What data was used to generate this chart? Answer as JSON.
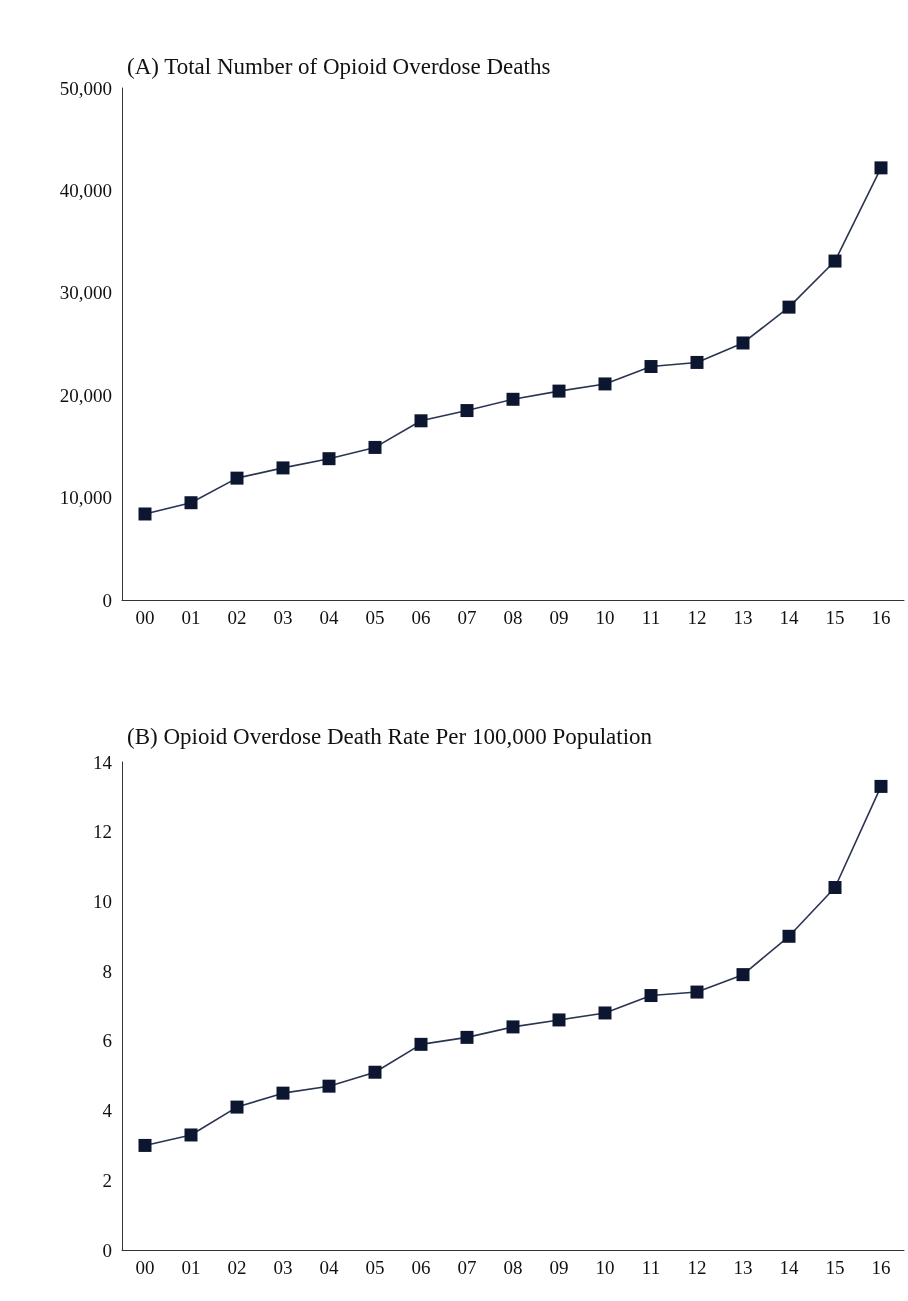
{
  "chart_data": [
    {
      "type": "line",
      "title": "(A) Total Number of Opioid Overdose Deaths",
      "categories": [
        "00",
        "01",
        "02",
        "03",
        "04",
        "05",
        "06",
        "07",
        "08",
        "09",
        "10",
        "11",
        "12",
        "13",
        "14",
        "15",
        "16"
      ],
      "values": [
        8400,
        9500,
        11900,
        12900,
        13800,
        14900,
        17500,
        18500,
        19600,
        20400,
        21100,
        22800,
        23200,
        25100,
        28600,
        33100,
        42200
      ],
      "color": "#0d1630",
      "ylim": [
        0,
        50000
      ],
      "yticks": [
        {
          "value": 0,
          "label": "0"
        },
        {
          "value": 10000,
          "label": "10,000"
        },
        {
          "value": 20000,
          "label": "20,000"
        },
        {
          "value": 30000,
          "label": "30,000"
        },
        {
          "value": 40000,
          "label": "40,000"
        },
        {
          "value": 50000,
          "label": "50,000"
        }
      ],
      "grid": false,
      "marker": "square",
      "line_style": "solid"
    },
    {
      "type": "line",
      "title": "(B) Opioid Overdose Death Rate Per 100,000 Population",
      "categories": [
        "00",
        "01",
        "02",
        "03",
        "04",
        "05",
        "06",
        "07",
        "08",
        "09",
        "10",
        "11",
        "12",
        "13",
        "14",
        "15",
        "16"
      ],
      "values": [
        3.0,
        3.3,
        4.1,
        4.5,
        4.7,
        5.1,
        5.9,
        6.1,
        6.4,
        6.6,
        6.8,
        7.3,
        7.4,
        7.9,
        9.0,
        10.4,
        13.3
      ],
      "color": "#0d1630",
      "ylim": [
        0,
        14
      ],
      "yticks": [
        0,
        2,
        4,
        6,
        8,
        10,
        12,
        14
      ],
      "grid": false,
      "marker": "square",
      "line_style": "solid"
    }
  ]
}
